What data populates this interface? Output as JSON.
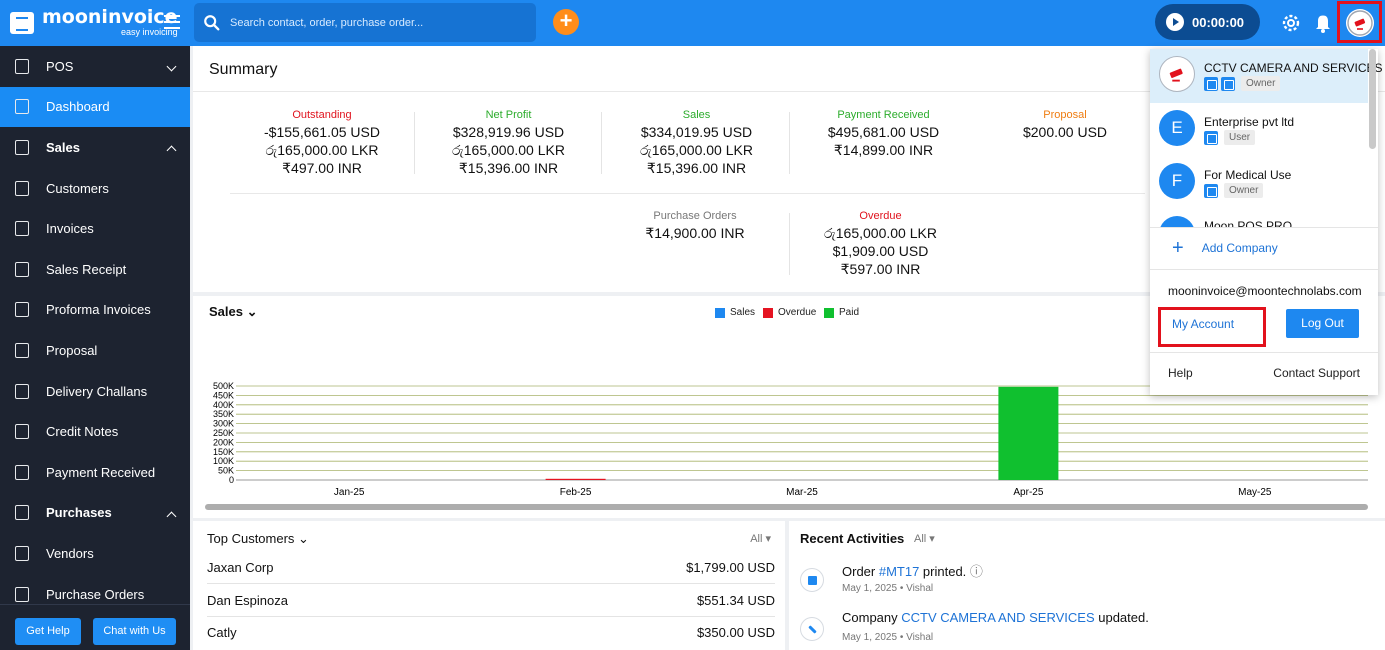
{
  "brand": {
    "name": "mooninvoice",
    "tagline": "easy invoicing"
  },
  "search": {
    "placeholder": "Search contact, order, purchase order..."
  },
  "timer": {
    "value": "00:00:00"
  },
  "sidebar": {
    "items": [
      {
        "label": "POS",
        "icon": "pos-icon",
        "section": false,
        "chevron": "down"
      },
      {
        "label": "Dashboard",
        "icon": "home-icon",
        "active": true
      },
      {
        "label": "Sales",
        "icon": "dollar-icon",
        "section": true,
        "chevron": "up"
      },
      {
        "label": "Customers",
        "icon": "contacts-icon"
      },
      {
        "label": "Invoices",
        "icon": "invoice-icon"
      },
      {
        "label": "Sales Receipt",
        "icon": "receipt-icon"
      },
      {
        "label": "Proforma Invoices",
        "icon": "proforma-icon"
      },
      {
        "label": "Proposal",
        "icon": "proposal-icon"
      },
      {
        "label": "Delivery Challans",
        "icon": "delivery-icon"
      },
      {
        "label": "Credit Notes",
        "icon": "credit-note-icon"
      },
      {
        "label": "Payment Received",
        "icon": "payment-icon"
      },
      {
        "label": "Purchases",
        "icon": "purchases-icon",
        "section": true,
        "chevron": "up"
      },
      {
        "label": "Vendors",
        "icon": "vendors-icon"
      },
      {
        "label": "Purchase Orders",
        "icon": "purchase-orders-icon"
      }
    ],
    "get_help": "Get Help",
    "chat": "Chat with Us"
  },
  "summary": {
    "title": "Summary",
    "outstanding": {
      "label": "Outstanding",
      "lines": [
        "-$155,661.05 USD",
        "රු165,000.00 LKR",
        "₹497.00 INR"
      ]
    },
    "net_profit": {
      "label": "Net Profit",
      "lines": [
        "$328,919.96 USD",
        "රු165,000.00 LKR",
        "₹15,396.00 INR"
      ]
    },
    "sales": {
      "label": "Sales",
      "lines": [
        "$334,019.95 USD",
        "රු165,000.00 LKR",
        "₹15,396.00 INR"
      ]
    },
    "payment_received": {
      "label": "Payment Received",
      "lines": [
        "$495,681.00 USD",
        "₹14,899.00 INR"
      ]
    },
    "proposal": {
      "label": "Proposal",
      "lines": [
        "$200.00 USD"
      ]
    },
    "purchase_orders": {
      "label": "Purchase Orders",
      "lines": [
        "₹14,900.00 INR"
      ]
    },
    "overdue": {
      "label": "Overdue",
      "lines": [
        "රු165,000.00 LKR",
        "$1,909.00 USD",
        "₹597.00 INR"
      ]
    }
  },
  "chart_data": {
    "type": "bar",
    "title": "Sales",
    "categories": [
      "Jan-25",
      "Feb-25",
      "Mar-25",
      "Apr-25",
      "May-25"
    ],
    "series": [
      {
        "name": "Sales",
        "color": "#1e88f0",
        "values": [
          0,
          0,
          0,
          0,
          0
        ]
      },
      {
        "name": "Overdue",
        "color": "#e51422",
        "values": [
          0,
          1909,
          0,
          0,
          0
        ]
      },
      {
        "name": "Paid",
        "color": "#10c02f",
        "values": [
          0,
          0,
          0,
          495681,
          0
        ]
      }
    ],
    "ylim": [
      0,
      500000
    ],
    "yticks": [
      "0",
      "50K",
      "100K",
      "150K",
      "200K",
      "250K",
      "300K",
      "350K",
      "400K",
      "450K",
      "500K"
    ],
    "legend": "top-center",
    "grid": true
  },
  "top_customers": {
    "title": "Top Customers",
    "filter": "All",
    "rows": [
      {
        "name": "Jaxan Corp",
        "amount": "$1,799.00 USD"
      },
      {
        "name": "Dan Espinoza",
        "amount": "$551.34 USD"
      },
      {
        "name": "Catly",
        "amount": "$350.00 USD"
      }
    ]
  },
  "recent_activities": {
    "title": "Recent Activities",
    "filter": "All",
    "items": [
      {
        "prefix": "Order ",
        "link": "#MT17",
        "suffix": " printed.",
        "meta": "May 1, 2025 • Vishal",
        "icon": "print-icon"
      },
      {
        "prefix": "Company ",
        "link": "CCTV CAMERA AND SERVICES",
        "suffix": " updated.",
        "meta": "May 1, 2025 • Vishal",
        "icon": "edit-icon"
      }
    ]
  },
  "account_menu": {
    "companies": [
      {
        "name": "CCTV CAMERA AND SERVICES",
        "role": "Owner",
        "avatar": "",
        "selected": true
      },
      {
        "name": "Enterprise pvt ltd",
        "role": "User",
        "avatar": "E"
      },
      {
        "name": "For Medical Use",
        "role": "Owner",
        "avatar": "F"
      },
      {
        "name": "Moon POS PRO",
        "role": "",
        "avatar": ""
      }
    ],
    "add_company": "Add Company",
    "email": "mooninvoice@moontechnolabs.com",
    "my_account": "My Account",
    "logout": "Log Out",
    "help": "Help",
    "support": "Contact Support"
  }
}
